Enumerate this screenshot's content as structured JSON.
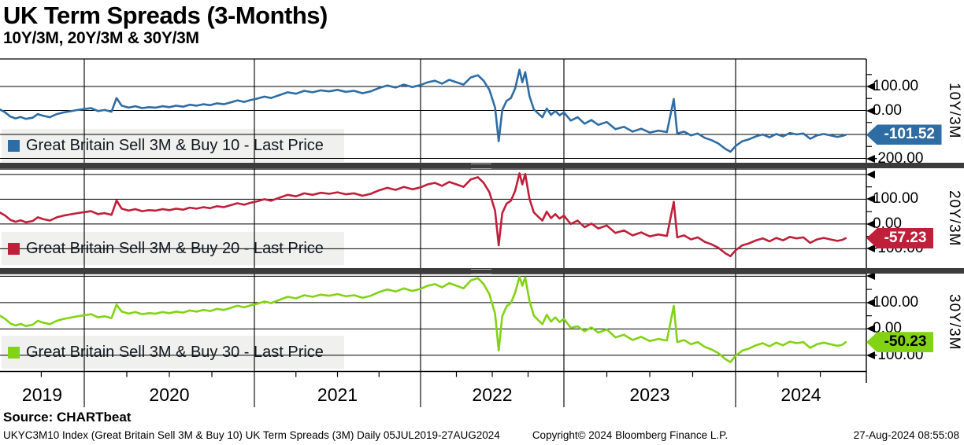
{
  "header": {
    "title": "UK Term Spreads (3-Months)",
    "subtitle": "10Y/3M, 20Y/3M & 30Y/3M"
  },
  "source_line": "Source: CHARTbeat",
  "footer": {
    "left": "UKYC3M10 Index (Great Britain Sell 3M & Buy 10) UK Term Spreads (3M)  Daily 05JUL2019-27AUG2024",
    "center": "Copyright© 2024 Bloomberg Finance L.P.",
    "right": "27-Aug-2024 08:55:08"
  },
  "chart_data": {
    "type": "line",
    "title": "UK Term Spreads (3-Months)",
    "subtitle": "10Y/3M, 20Y/3M & 30Y/3M",
    "x_unit": "decimal_year",
    "x_range_dates": "05JUL2019-27AUG2024",
    "grid": "on",
    "x_anchors": [
      [
        2019.51,
        0
      ],
      [
        2020,
        107
      ],
      [
        2021,
        323
      ],
      [
        2022,
        534
      ],
      [
        2023,
        716
      ],
      [
        2024,
        934
      ],
      [
        2024.66,
        1076
      ]
    ],
    "x_year_labels": [
      "2019",
      "2020",
      "2021",
      "2022",
      "2023",
      "2024"
    ],
    "x_gridline_years": [
      2020,
      2021,
      2022,
      2023,
      2024
    ],
    "x": [
      2019.51,
      2019.54,
      2019.57,
      2019.6,
      2019.63,
      2019.66,
      2019.7,
      2019.73,
      2019.76,
      2019.8,
      2019.84,
      2019.88,
      2019.92,
      2019.96,
      2020.0,
      2020.04,
      2020.08,
      2020.12,
      2020.16,
      2020.19,
      2020.22,
      2020.26,
      2020.3,
      2020.34,
      2020.38,
      2020.42,
      2020.46,
      2020.5,
      2020.54,
      2020.58,
      2020.62,
      2020.66,
      2020.7,
      2020.74,
      2020.78,
      2020.82,
      2020.86,
      2020.9,
      2020.94,
      2020.98,
      2021.02,
      2021.06,
      2021.1,
      2021.15,
      2021.2,
      2021.25,
      2021.3,
      2021.35,
      2021.4,
      2021.45,
      2021.5,
      2021.55,
      2021.6,
      2021.65,
      2021.7,
      2021.75,
      2021.8,
      2021.85,
      2021.9,
      2021.95,
      2022.0,
      2022.05,
      2022.1,
      2022.15,
      2022.2,
      2022.25,
      2022.3,
      2022.35,
      2022.4,
      2022.44,
      2022.48,
      2022.52,
      2022.545,
      2022.57,
      2022.6,
      2022.63,
      2022.66,
      2022.69,
      2022.71,
      2022.73,
      2022.76,
      2022.79,
      2022.82,
      2022.85,
      2022.88,
      2022.91,
      2022.94,
      2022.97,
      2023.0,
      2023.04,
      2023.08,
      2023.12,
      2023.16,
      2023.2,
      2023.25,
      2023.3,
      2023.35,
      2023.4,
      2023.45,
      2023.5,
      2023.55,
      2023.6,
      2023.64,
      2023.66,
      2023.7,
      2023.74,
      2023.78,
      2023.82,
      2023.86,
      2023.9,
      2023.94,
      2023.97,
      2024.0,
      2024.04,
      2024.08,
      2024.12,
      2024.16,
      2024.2,
      2024.24,
      2024.28,
      2024.32,
      2024.36,
      2024.4,
      2024.44,
      2024.48,
      2024.52,
      2024.56,
      2024.6,
      2024.63,
      2024.65
    ],
    "panels": [
      {
        "name": "10Y/3M",
        "legend": "Great Britain Sell 3M & Buy 10 - Last Price",
        "color": "#2e6da4",
        "last_price": -101.52,
        "last_label": "-101.52",
        "badge_text_color": "#ffffff",
        "ylim": [
          -218,
          215
        ],
        "ytick_labels": [
          {
            "v": 100,
            "label": "100.00"
          },
          {
            "v": 0,
            "label": "0.00"
          },
          {
            "v": -200,
            "label": "-200.00"
          }
        ],
        "arrow_ticks": [
          100,
          0,
          -100,
          -200
        ],
        "minor_ticks": [
          150,
          50,
          -50,
          -150
        ],
        "gridlines": [
          100,
          0,
          -100,
          -200
        ],
        "values": [
          4,
          -8,
          -25,
          -33,
          -27,
          -35,
          -30,
          -15,
          -22,
          -28,
          -15,
          -8,
          -3,
          2,
          6,
          10,
          -2,
          2,
          -5,
          52,
          20,
          12,
          18,
          10,
          14,
          12,
          18,
          14,
          20,
          16,
          24,
          20,
          26,
          22,
          30,
          26,
          34,
          42,
          36,
          44,
          50,
          58,
          52,
          64,
          76,
          70,
          82,
          76,
          84,
          80,
          86,
          78,
          82,
          72,
          80,
          94,
          104,
          96,
          108,
          98,
          106,
          118,
          124,
          112,
          128,
          118,
          108,
          138,
          147,
          124,
          86,
          12,
          -128,
          2,
          40,
          52,
          92,
          170,
          118,
          160,
          60,
          5,
          -12,
          -28,
          8,
          -18,
          -2,
          -20,
          -8,
          -42,
          -28,
          -55,
          -40,
          -60,
          -48,
          -78,
          -68,
          -88,
          -76,
          -92,
          -84,
          -90,
          48,
          -96,
          -88,
          -104,
          -96,
          -114,
          -124,
          -138,
          -160,
          -172,
          -148,
          -128,
          -120,
          -108,
          -100,
          -112,
          -98,
          -108,
          -94,
          -100,
          -96,
          -118,
          -104,
          -98,
          -104,
          -110,
          -106,
          -101.52
        ]
      },
      {
        "name": "20Y/3M",
        "legend": "Great Britain Sell 3M & Buy 20 - Last Price",
        "color": "#c01f3a",
        "last_price": -57.23,
        "last_label": "-57.23",
        "badge_text_color": "#ffffff",
        "ylim": [
          -178,
          222
        ],
        "ytick_labels": [
          {
            "v": 100,
            "label": "100.00"
          },
          {
            "v": 0,
            "label": "0.00"
          },
          {
            "v": -100,
            "label": "-100.00"
          }
        ],
        "arrow_ticks": [
          200,
          100,
          0,
          -100
        ],
        "minor_ticks": [
          150,
          50,
          -50
        ],
        "gridlines": [
          200,
          100,
          0,
          -100
        ],
        "values": [
          46,
          34,
          17,
          9,
          15,
          7,
          12,
          27,
          20,
          14,
          27,
          34,
          39,
          44,
          48,
          52,
          40,
          44,
          37,
          95,
          62,
          54,
          60,
          52,
          56,
          54,
          60,
          56,
          62,
          58,
          66,
          62,
          68,
          64,
          72,
          68,
          76,
          84,
          78,
          86,
          92,
          100,
          94,
          106,
          118,
          112,
          124,
          118,
          126,
          122,
          128,
          120,
          124,
          114,
          122,
          136,
          146,
          138,
          150,
          140,
          148,
          160,
          166,
          154,
          170,
          160,
          150,
          180,
          189,
          166,
          128,
          54,
          -86,
          44,
          82,
          94,
          134,
          205,
          160,
          202,
          102,
          47,
          30,
          14,
          50,
          24,
          40,
          22,
          34,
          0,
          14,
          -13,
          2,
          -18,
          -6,
          -36,
          -26,
          -46,
          -34,
          -50,
          -42,
          -48,
          90,
          -54,
          -46,
          -62,
          -54,
          -72,
          -82,
          -96,
          -118,
          -130,
          -106,
          -86,
          -78,
          -66,
          -58,
          -70,
          -56,
          -66,
          -52,
          -58,
          -54,
          -76,
          -62,
          -56,
          -62,
          -68,
          -64,
          -57.23
        ]
      },
      {
        "name": "30Y/3M",
        "legend": "Great Britain Sell 3M & Buy 30 - Last Price",
        "color": "#82d314",
        "last_price": -50.23,
        "last_label": "-50.23",
        "badge_text_color": "#000000",
        "ylim": [
          -160,
          210
        ],
        "ytick_labels": [
          {
            "v": 100,
            "label": "100.00"
          },
          {
            "v": 0,
            "label": "0.00"
          },
          {
            "v": -100,
            "label": "-100.00"
          }
        ],
        "arrow_ticks": [
          200,
          100,
          0,
          -100
        ],
        "minor_ticks": [
          150,
          50,
          -50
        ],
        "gridlines": [
          200,
          100,
          0,
          -100
        ],
        "values": [
          50,
          38,
          21,
          13,
          19,
          11,
          16,
          31,
          24,
          18,
          31,
          38,
          43,
          48,
          52,
          56,
          44,
          48,
          41,
          92,
          66,
          58,
          64,
          56,
          60,
          58,
          64,
          60,
          66,
          62,
          70,
          66,
          72,
          68,
          76,
          72,
          80,
          88,
          82,
          90,
          96,
          104,
          98,
          110,
          122,
          116,
          128,
          122,
          130,
          126,
          132,
          124,
          128,
          118,
          126,
          140,
          150,
          142,
          154,
          144,
          152,
          164,
          170,
          158,
          174,
          164,
          154,
          184,
          193,
          170,
          132,
          58,
          -82,
          48,
          86,
          98,
          138,
          198,
          164,
          196,
          106,
          51,
          34,
          18,
          54,
          28,
          44,
          26,
          38,
          4,
          10,
          -9,
          6,
          -14,
          -2,
          -32,
          -22,
          -42,
          -30,
          -46,
          -38,
          -44,
          88,
          -50,
          -42,
          -58,
          -50,
          -68,
          -78,
          -92,
          -114,
          -126,
          -102,
          -82,
          -74,
          -62,
          -54,
          -66,
          -52,
          -62,
          -48,
          -54,
          -50,
          -72,
          -58,
          -52,
          -58,
          -64,
          -60,
          -50.23
        ]
      }
    ]
  },
  "colors": {
    "grid": "#000000",
    "year_line": "#222222",
    "legend_bg": "#f0f0ee",
    "splitter": "#3c3c3c",
    "text": "#000000"
  }
}
